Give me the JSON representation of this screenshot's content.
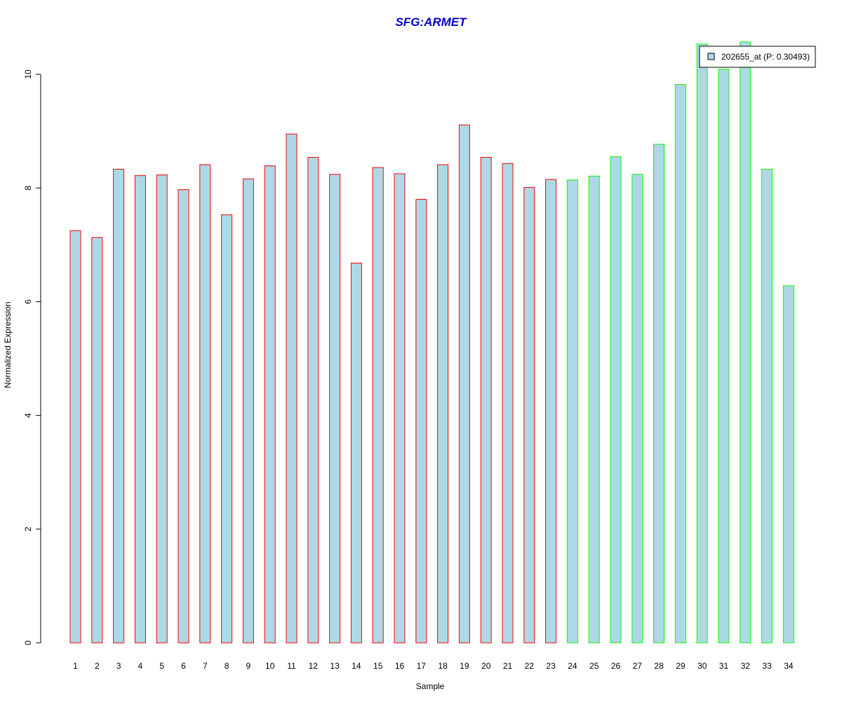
{
  "chart_data": {
    "type": "bar",
    "title": "SFG:ARMET",
    "xlabel": "Sample",
    "ylabel": "Normalized Expression",
    "ylim": [
      0,
      10
    ],
    "yticks": [
      "0",
      "2",
      "4",
      "6",
      "8",
      "10"
    ],
    "categories": [
      "1",
      "2",
      "3",
      "4",
      "5",
      "6",
      "7",
      "8",
      "9",
      "10",
      "11",
      "12",
      "13",
      "14",
      "15",
      "16",
      "17",
      "18",
      "19",
      "20",
      "21",
      "22",
      "23",
      "24",
      "25",
      "26",
      "27",
      "28",
      "29",
      "30",
      "31",
      "32",
      "33",
      "34"
    ],
    "series": [
      {
        "name": "202655_at (P: 0.30493)",
        "fill": "#add8e6",
        "values": [
          7.25,
          7.13,
          8.33,
          8.22,
          8.23,
          7.97,
          8.41,
          7.53,
          8.16,
          8.39,
          8.95,
          8.54,
          8.24,
          6.68,
          8.36,
          8.25,
          7.8,
          8.41,
          9.11,
          8.54,
          8.43,
          8.01,
          8.15,
          8.14,
          8.21,
          8.55,
          8.24,
          8.77,
          9.82,
          10.53,
          10.09,
          10.57,
          8.33,
          6.28
        ]
      }
    ],
    "bar_outline_colors": [
      "#ff0000",
      "#ff0000",
      "#ff0000",
      "#ff0000",
      "#ff0000",
      "#ff0000",
      "#ff0000",
      "#ff0000",
      "#ff0000",
      "#ff0000",
      "#ff0000",
      "#ff0000",
      "#ff0000",
      "#ff0000",
      "#ff0000",
      "#ff0000",
      "#ff0000",
      "#ff0000",
      "#ff0000",
      "#ff0000",
      "#ff0000",
      "#ff0000",
      "#ff0000",
      "#00ff00",
      "#00ff00",
      "#00ff00",
      "#00ff00",
      "#00ff00",
      "#00ff00",
      "#00ff00",
      "#00ff00",
      "#00ff00",
      "#00ff00",
      "#00ff00"
    ],
    "colors": {
      "title": "#0000cd",
      "bar_fill": "#add8e6"
    },
    "legend": {
      "position": "top-right",
      "label": "202655_at (P: 0.30493)"
    },
    "grid": false
  }
}
